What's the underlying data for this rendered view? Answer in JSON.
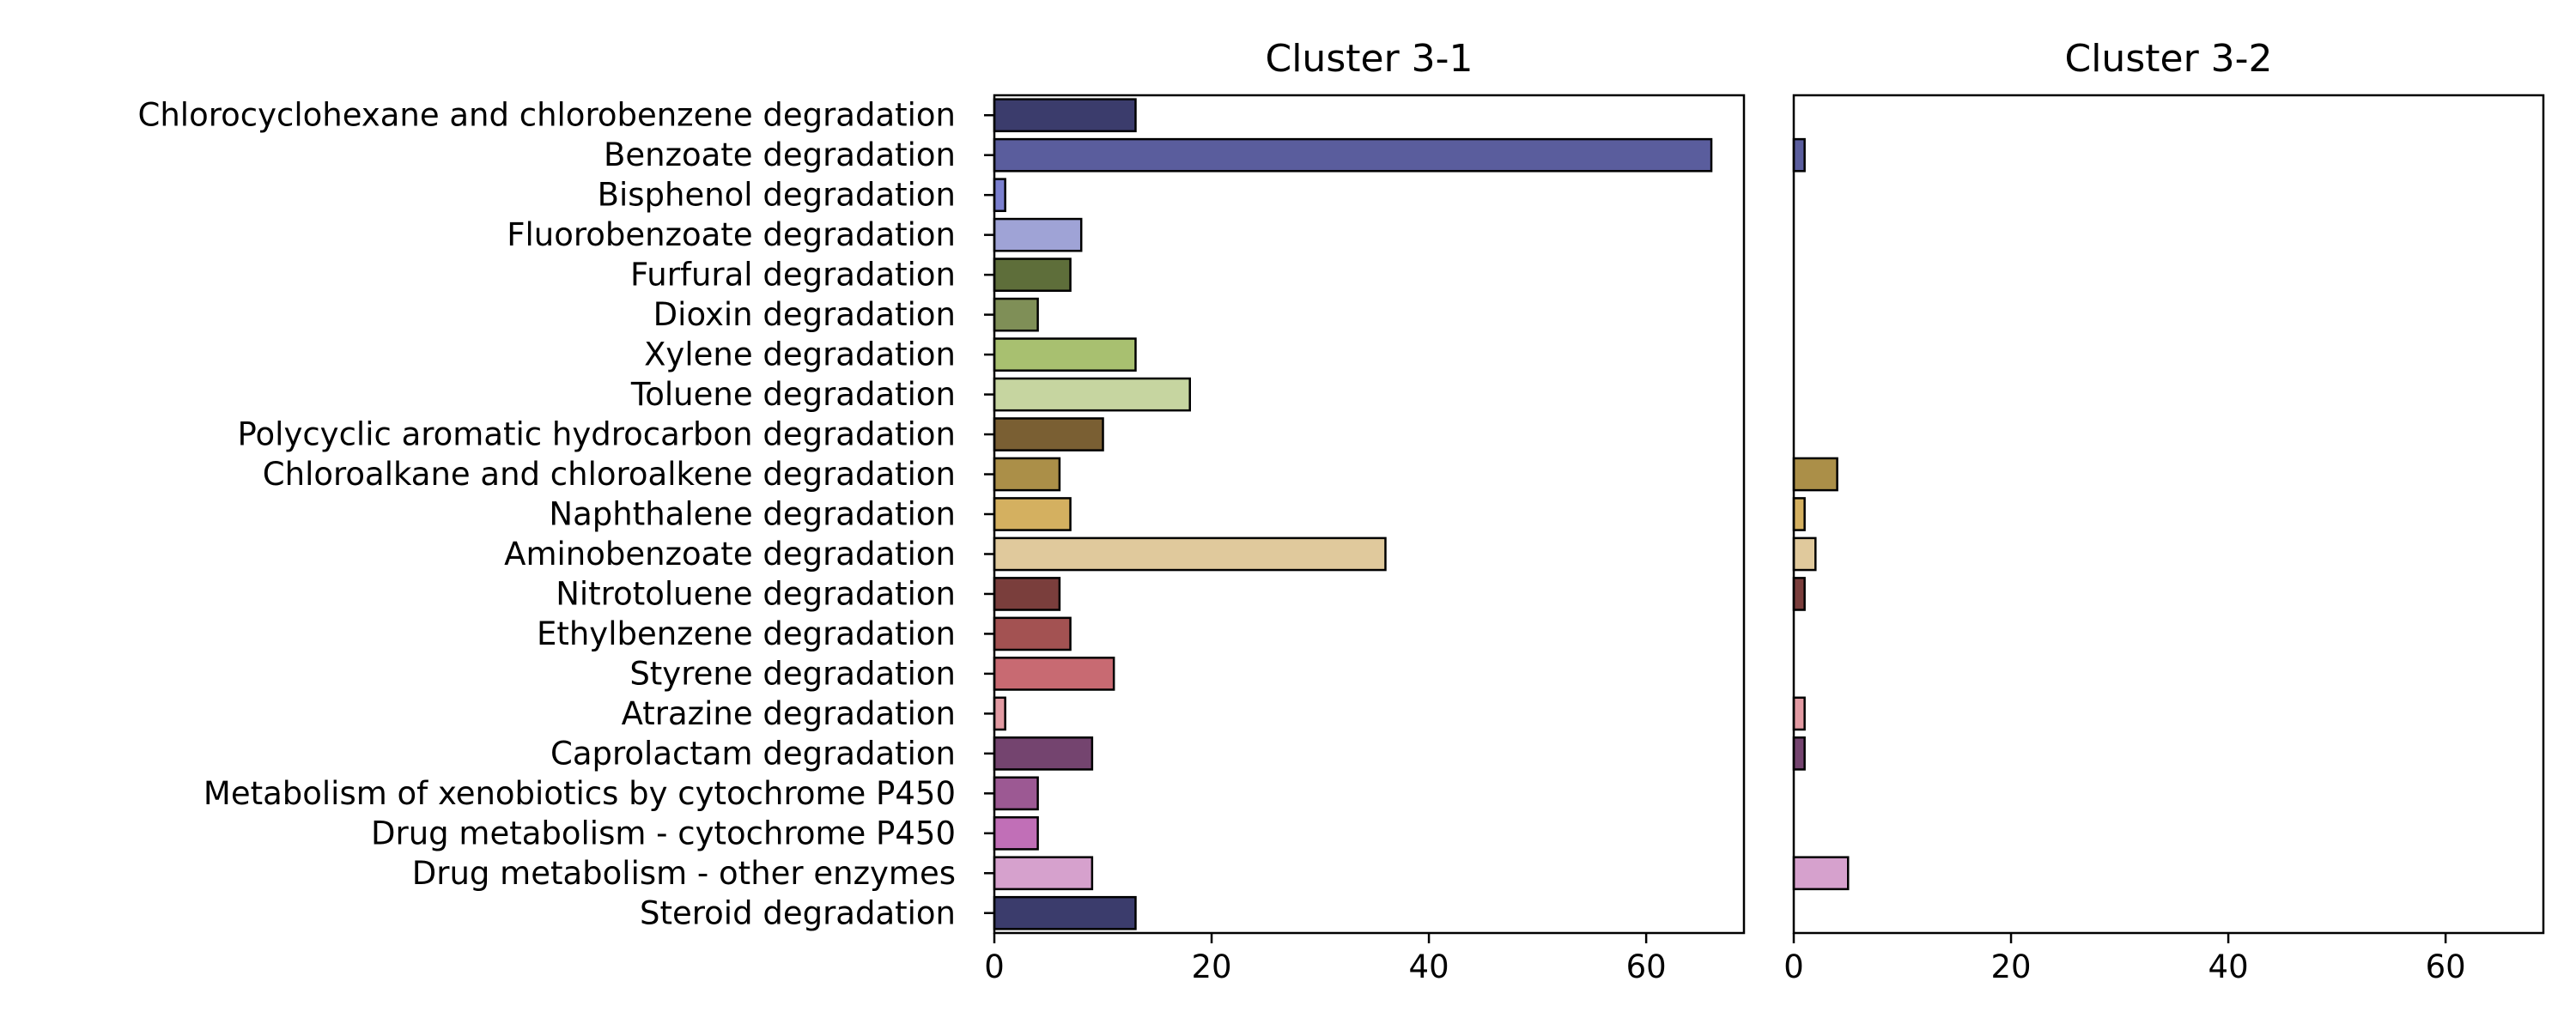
{
  "chart_data": {
    "type": "bar",
    "orientation": "horizontal",
    "categories": [
      "Chlorocyclohexane and chlorobenzene degradation",
      "Benzoate degradation",
      "Bisphenol degradation",
      "Fluorobenzoate degradation",
      "Furfural degradation",
      "Dioxin degradation",
      "Xylene degradation",
      "Toluene degradation",
      "Polycyclic aromatic hydrocarbon degradation",
      "Chloroalkane and chloroalkene degradation",
      "Naphthalene degradation",
      "Aminobenzoate degradation",
      "Nitrotoluene degradation",
      "Ethylbenzene degradation",
      "Styrene degradation",
      "Atrazine degradation",
      "Caprolactam degradation",
      "Metabolism of xenobiotics by cytochrome P450",
      "Drug metabolism - cytochrome P450",
      "Drug metabolism - other enzymes",
      "Steroid degradation"
    ],
    "colors": [
      "#3b3c6c",
      "#5a5d9d",
      "#7a7fcf",
      "#9fa3d6",
      "#5e6e3a",
      "#7f8f57",
      "#a8c070",
      "#c6d5a0",
      "#7a5f33",
      "#ab8f48",
      "#d4b060",
      "#e0c99c",
      "#7a3e3c",
      "#a35252",
      "#c86a72",
      "#e29aa2",
      "#74446f",
      "#9c5993",
      "#c16fb7",
      "#d6a1cd",
      "#3b3c6c"
    ],
    "panels": [
      {
        "title": "Cluster 3-1",
        "values": [
          13,
          66,
          1,
          8,
          7,
          4,
          13,
          18,
          10,
          6,
          7,
          36,
          6,
          7,
          11,
          1,
          9,
          4,
          4,
          9,
          13
        ]
      },
      {
        "title": "Cluster 3-2",
        "values": [
          0,
          1,
          0,
          0,
          0,
          0,
          0,
          0,
          0,
          4,
          1,
          2,
          1,
          0,
          0,
          1,
          1,
          0,
          0,
          5,
          0
        ]
      }
    ],
    "xlim": [
      0,
      69
    ],
    "xticks": [
      "0",
      "20",
      "40",
      "60"
    ],
    "shared_y": true,
    "grid": false
  }
}
